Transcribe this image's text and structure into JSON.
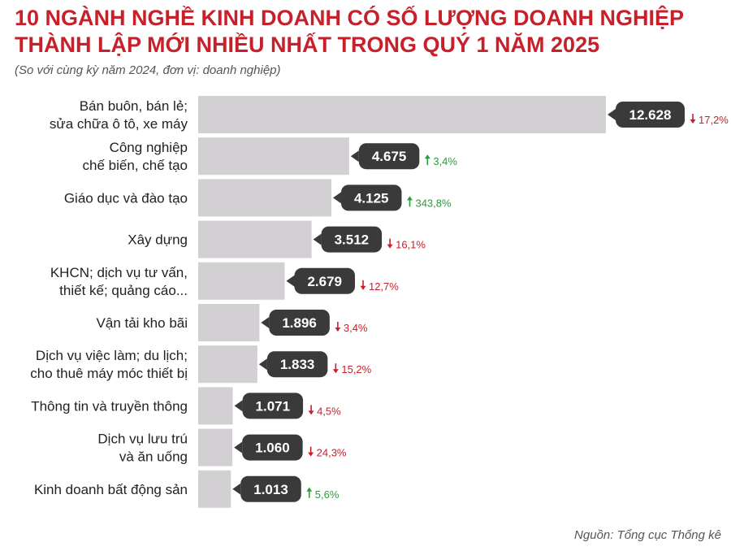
{
  "title_line1": "10 NGÀNH NGHỀ KINH DOANH CÓ SỐ LƯỢNG DOANH NGHIỆP",
  "title_line2": "THÀNH LẬP MỚI NHIỀU NHẤT TRONG QUÝ 1 NĂM 2025",
  "subtitle": "(So với cùng kỳ năm 2024, đơn vị: doanh nghiệp)",
  "source": "Nguồn: Tổng cục Thống kê",
  "colors": {
    "title": "#c8202b",
    "bar": "#d2d0d2",
    "bubble": "#3a3a3b",
    "down": "#c8202b",
    "up": "#2e9a3e"
  },
  "chart_data": {
    "type": "bar",
    "orientation": "horizontal",
    "categories": [
      [
        "Bán buôn, bán lẻ;",
        "sửa chữa ô tô, xe máy"
      ],
      [
        "Công nghiệp",
        "chế biến, chế tạo"
      ],
      [
        "Giáo dục và đào tạo"
      ],
      [
        "Xây dựng"
      ],
      [
        "KHCN; dịch vụ tư vấn,",
        "thiết kế; quảng cáo..."
      ],
      [
        "Vận tải kho bãi"
      ],
      [
        "Dịch vụ việc làm; du lịch;",
        "cho thuê máy móc thiết bị"
      ],
      [
        "Thông tin và truyền thông"
      ],
      [
        "Dịch vụ lưu trú",
        "và ăn uống"
      ],
      [
        "Kinh doanh bất động sản"
      ]
    ],
    "values": [
      12628,
      4675,
      4125,
      3512,
      2679,
      1896,
      1833,
      1071,
      1060,
      1013
    ],
    "value_labels": [
      "12.628",
      "4.675",
      "4.125",
      "3.512",
      "2.679",
      "1.896",
      "1.833",
      "1.071",
      "1.060",
      "1.013"
    ],
    "change_labels": [
      "17,2%",
      "3,4%",
      "343,8%",
      "16,1%",
      "12,7%",
      "3,4%",
      "15,2%",
      "4,5%",
      "24,3%",
      "5,6%"
    ],
    "change_direction": [
      "down",
      "up",
      "up",
      "down",
      "down",
      "down",
      "down",
      "down",
      "down",
      "up"
    ],
    "xlim": [
      0,
      12628
    ]
  }
}
